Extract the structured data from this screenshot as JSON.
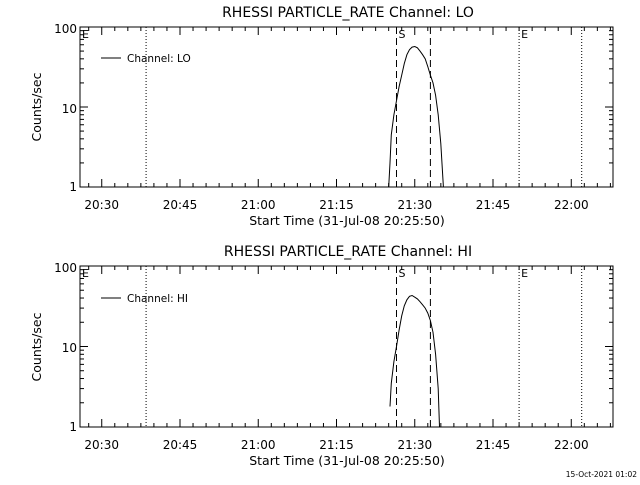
{
  "timestamp": "15-Oct-2021 01:02",
  "chart_data": [
    {
      "type": "line",
      "title": "RHESSI PARTICLE_RATE Channel: LO",
      "xlabel": "Start Time (31-Jul-08 20:25:50)",
      "ylabel": "Counts/sec",
      "y_scale": "log",
      "ylim": [
        1,
        100
      ],
      "yticks": [
        "1",
        "10",
        "100"
      ],
      "xlim": [
        "20:25:50",
        "22:08:00"
      ],
      "xticks": [
        "20:30",
        "20:45",
        "21:00",
        "21:15",
        "21:30",
        "21:45",
        "22:00"
      ],
      "legend": {
        "entries": [
          "Channel: LO"
        ],
        "placement": "top-left"
      },
      "series": [
        {
          "name": "Channel: LO",
          "points": [
            [
              "21:25:00",
              1.0
            ],
            [
              "21:25:15",
              2.0
            ],
            [
              "21:25:30",
              4.5
            ],
            [
              "21:26:00",
              8.0
            ],
            [
              "21:26:30",
              12.0
            ],
            [
              "21:27:00",
              18.0
            ],
            [
              "21:27:30",
              25.0
            ],
            [
              "21:28:00",
              35.0
            ],
            [
              "21:28:30",
              45.0
            ],
            [
              "21:29:00",
              52.0
            ],
            [
              "21:29:30",
              56.0
            ],
            [
              "21:30:00",
              57.0
            ],
            [
              "21:30:30",
              55.0
            ],
            [
              "21:31:00",
              50.0
            ],
            [
              "21:31:30",
              45.0
            ],
            [
              "21:32:00",
              40.0
            ],
            [
              "21:32:30",
              32.0
            ],
            [
              "21:33:00",
              25.0
            ],
            [
              "21:33:30",
              20.0
            ],
            [
              "21:34:00",
              14.0
            ],
            [
              "21:34:30",
              8.0
            ],
            [
              "21:35:00",
              3.5
            ],
            [
              "21:35:30",
              1.0
            ]
          ]
        }
      ],
      "markers": [
        {
          "label": "E",
          "style": "dotted",
          "time": "20:25:50"
        },
        {
          "label": "",
          "style": "dotted",
          "time": "20:38:30"
        },
        {
          "label": "S",
          "style": "dashed",
          "time": "21:26:30"
        },
        {
          "label": "",
          "style": "dashed",
          "time": "21:33:00"
        },
        {
          "label": "E",
          "style": "dotted",
          "time": "21:50:00"
        },
        {
          "label": "",
          "style": "dotted",
          "time": "22:02:00"
        }
      ]
    },
    {
      "type": "line",
      "title": "RHESSI PARTICLE_RATE Channel: HI",
      "xlabel": "Start Time (31-Jul-08 20:25:50)",
      "ylabel": "Counts/sec",
      "y_scale": "log",
      "ylim": [
        1,
        100
      ],
      "yticks": [
        "1",
        "10",
        "100"
      ],
      "xlim": [
        "20:25:50",
        "22:08:00"
      ],
      "xticks": [
        "20:30",
        "20:45",
        "21:00",
        "21:15",
        "21:30",
        "21:45",
        "22:00"
      ],
      "legend": {
        "entries": [
          "Channel: HI"
        ],
        "placement": "top-left"
      },
      "series": [
        {
          "name": "Channel: HI",
          "points": [
            [
              "21:25:15",
              1.8
            ],
            [
              "21:25:30",
              3.5
            ],
            [
              "21:26:00",
              6.5
            ],
            [
              "21:26:30",
              10.0
            ],
            [
              "21:27:00",
              16.0
            ],
            [
              "21:27:30",
              24.0
            ],
            [
              "21:28:00",
              32.0
            ],
            [
              "21:28:30",
              38.0
            ],
            [
              "21:29:00",
              42.0
            ],
            [
              "21:29:30",
              43.0
            ],
            [
              "21:30:00",
              41.0
            ],
            [
              "21:30:30",
              39.0
            ],
            [
              "21:31:00",
              36.0
            ],
            [
              "21:31:30",
              33.0
            ],
            [
              "21:32:00",
              30.0
            ],
            [
              "21:32:30",
              26.0
            ],
            [
              "21:33:00",
              21.0
            ],
            [
              "21:33:30",
              15.0
            ],
            [
              "21:34:00",
              8.0
            ],
            [
              "21:34:30",
              3.0
            ],
            [
              "21:34:45",
              1.0
            ]
          ]
        }
      ],
      "markers": [
        {
          "label": "E",
          "style": "dotted",
          "time": "20:25:50"
        },
        {
          "label": "",
          "style": "dotted",
          "time": "20:38:30"
        },
        {
          "label": "S",
          "style": "dashed",
          "time": "21:26:30"
        },
        {
          "label": "",
          "style": "dashed",
          "time": "21:33:00"
        },
        {
          "label": "E",
          "style": "dotted",
          "time": "21:50:00"
        },
        {
          "label": "",
          "style": "dotted",
          "time": "22:02:00"
        }
      ]
    }
  ]
}
